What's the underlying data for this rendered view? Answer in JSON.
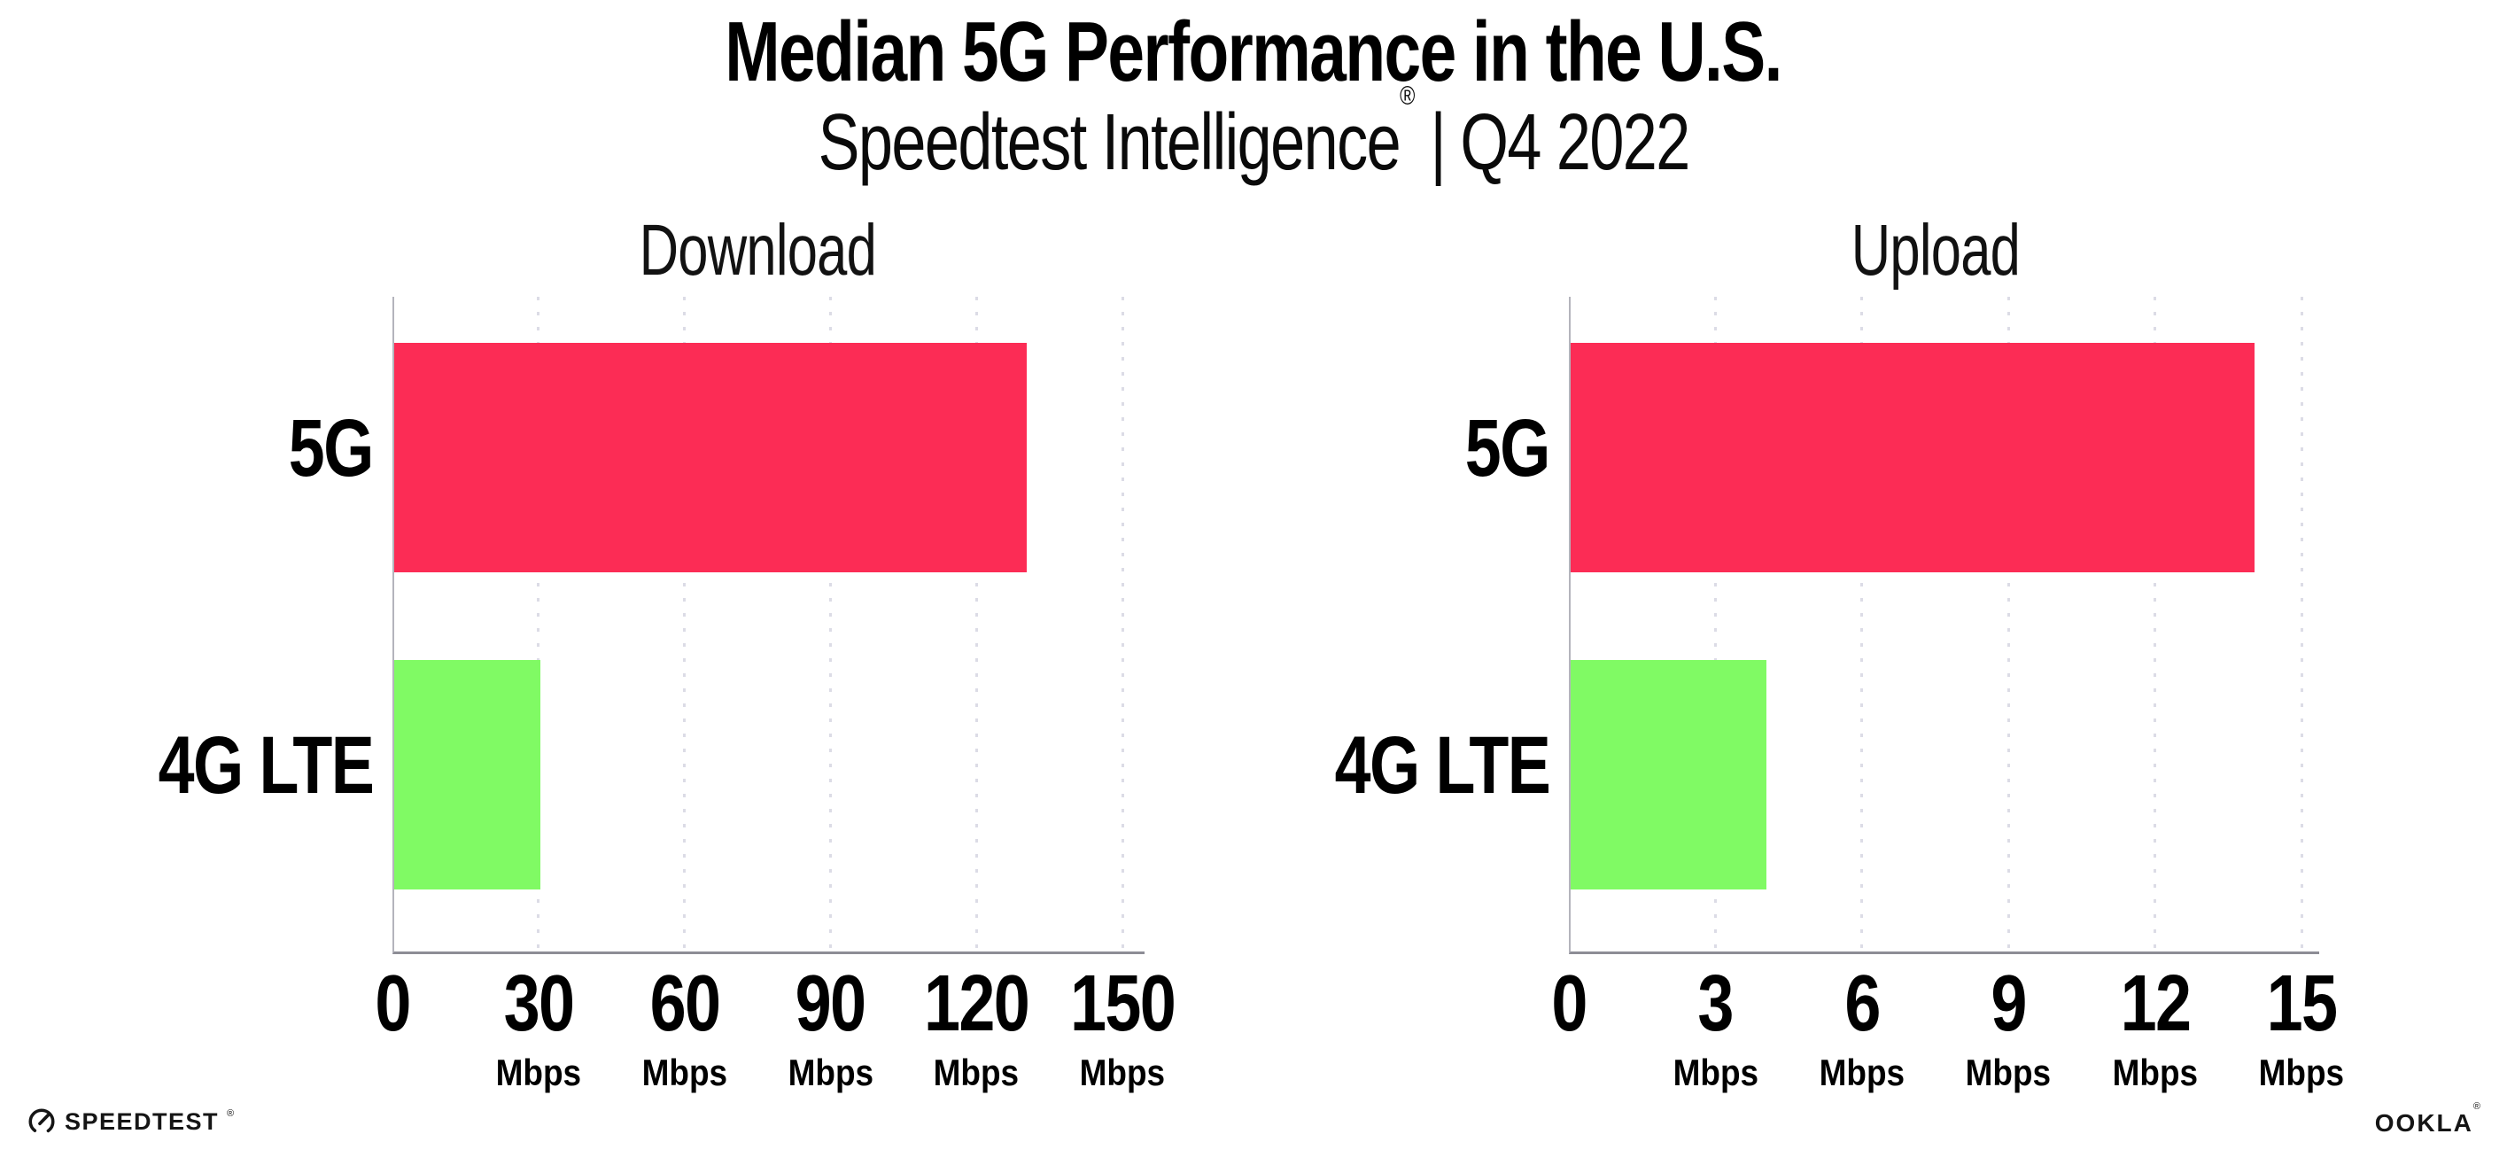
{
  "header": {
    "title": "Median 5G Performance in the U.S.",
    "subtitle_product": "Speedtest Intelligence",
    "subtitle_reg": "®",
    "subtitle_separator": "|",
    "subtitle_period": "Q4 2022"
  },
  "chart_data": [
    {
      "type": "bar",
      "orientation": "horizontal",
      "title": "Download",
      "categories": [
        "5G",
        "4G LTE"
      ],
      "values": [
        130,
        30
      ],
      "unit": "Mbps",
      "xlim": [
        0,
        150
      ],
      "grid": "dotted-vertical",
      "legend": "none",
      "bar_colors": [
        "#FC2C55",
        "#80FA64"
      ],
      "ticks": [
        {
          "v": 0,
          "label": "0",
          "unit": ""
        },
        {
          "v": 30,
          "label": "30",
          "unit": "Mbps"
        },
        {
          "v": 60,
          "label": "60",
          "unit": "Mbps"
        },
        {
          "v": 90,
          "label": "90",
          "unit": "Mbps"
        },
        {
          "v": 120,
          "label": "120",
          "unit": "Mbps"
        },
        {
          "v": 150,
          "label": "150",
          "unit": "Mbps"
        }
      ]
    },
    {
      "type": "bar",
      "orientation": "horizontal",
      "title": "Upload",
      "categories": [
        "5G",
        "4G LTE"
      ],
      "values": [
        14,
        4
      ],
      "unit": "Mbps",
      "xlim": [
        0,
        15
      ],
      "grid": "dotted-vertical",
      "legend": "none",
      "bar_colors": [
        "#FC2C55",
        "#80FA64"
      ],
      "ticks": [
        {
          "v": 0,
          "label": "0",
          "unit": ""
        },
        {
          "v": 3,
          "label": "3",
          "unit": "Mbps"
        },
        {
          "v": 6,
          "label": "6",
          "unit": "Mbps"
        },
        {
          "v": 9,
          "label": "9",
          "unit": "Mbps"
        },
        {
          "v": 12,
          "label": "12",
          "unit": "Mbps"
        },
        {
          "v": 15,
          "label": "15",
          "unit": "Mbps"
        }
      ]
    }
  ],
  "footer": {
    "speedtest_wordmark": "SPEEDTEST",
    "speedtest_reg": "®",
    "ookla_wordmark": "OOKLA",
    "ookla_reg": "®"
  },
  "colors": {
    "bar_5g": "#FC2C55",
    "bar_4g_lte": "#80FA64",
    "gridline": "#DCDCE6",
    "axis_bottom": "#8D8D95",
    "axis_left": "#B4B4BC",
    "text": "#000000"
  }
}
